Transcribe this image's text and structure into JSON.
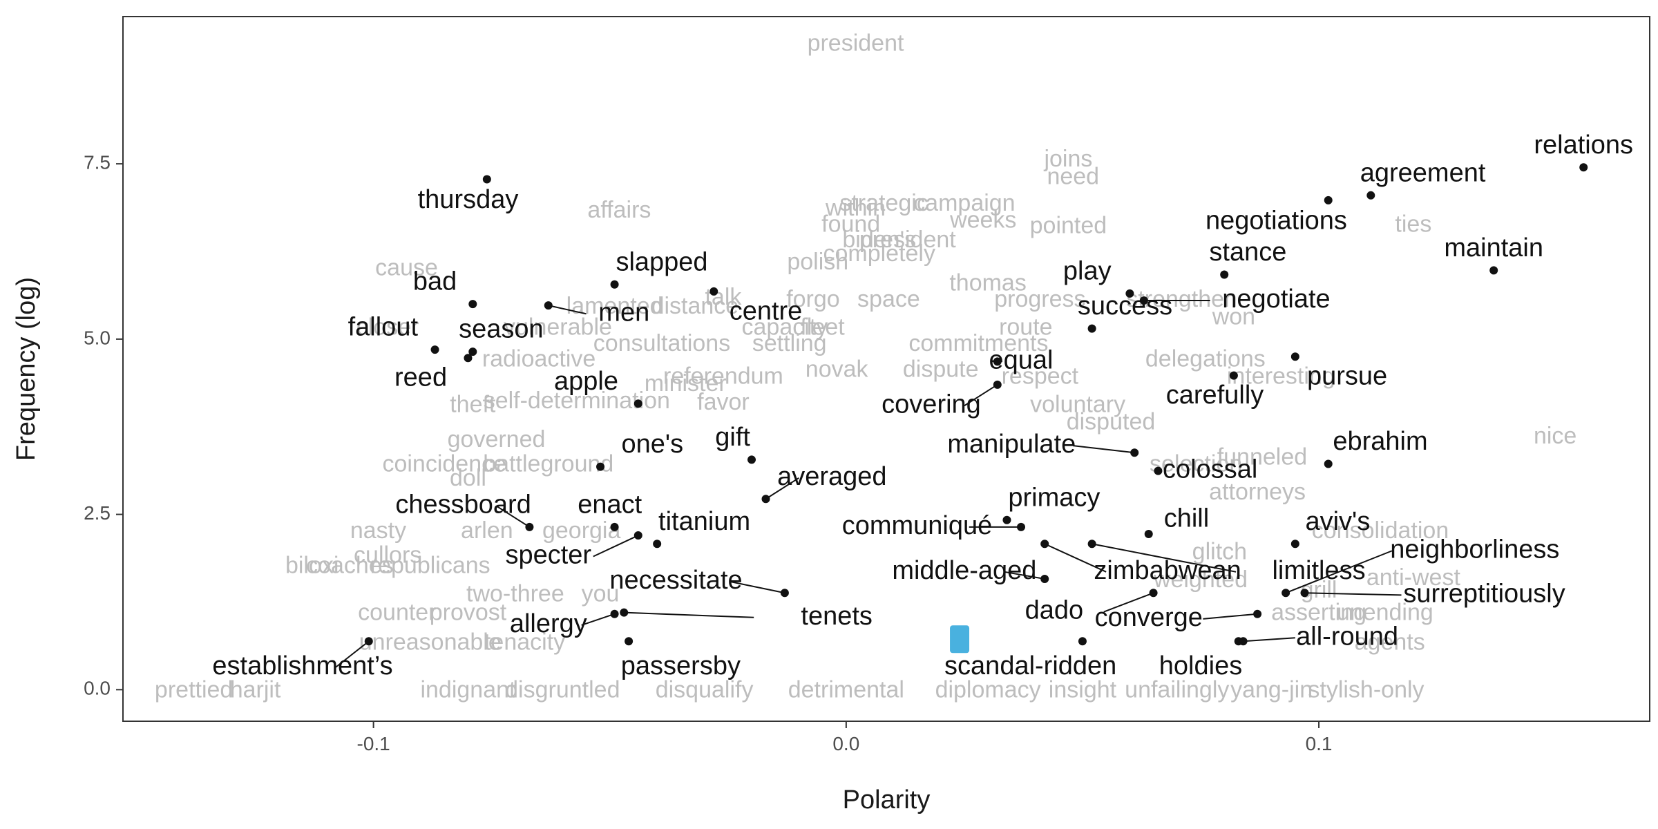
{
  "chart_data": {
    "type": "scatter",
    "title": "",
    "xlabel": "Polarity",
    "ylabel": "Frequency (log)",
    "xlim": [
      -0.153,
      0.17
    ],
    "ylim": [
      -0.45,
      9.6
    ],
    "x_ticks": [
      {
        "value": -0.1,
        "label": "-0.1"
      },
      {
        "value": 0.0,
        "label": "0.0"
      },
      {
        "value": 0.1,
        "label": "0.1"
      }
    ],
    "y_ticks": [
      {
        "value": 0.0,
        "label": "0.0"
      },
      {
        "value": 2.5,
        "label": "2.5"
      },
      {
        "value": 5.0,
        "label": "5.0"
      },
      {
        "value": 7.5,
        "label": "7.5"
      }
    ],
    "grid": false,
    "point_color": "#111111",
    "label_color": "#111111",
    "background_word_color": "#bdbdbd",
    "highlight_color": "#29a3d9",
    "labeled_points": [
      {
        "word": "relations",
        "x": 0.156,
        "y": 7.45,
        "label_x": 0.156,
        "label_y": 7.75
      },
      {
        "word": "agreement",
        "x": 0.111,
        "y": 7.05,
        "label_x": 0.122,
        "label_y": 7.35
      },
      {
        "word": "negotiations",
        "x": 0.102,
        "y": 6.98,
        "label_x": 0.091,
        "label_y": 6.67
      },
      {
        "word": "maintain",
        "x": 0.137,
        "y": 5.98,
        "label_x": 0.137,
        "label_y": 6.28
      },
      {
        "word": "stance",
        "x": 0.08,
        "y": 5.92,
        "label_x": 0.085,
        "label_y": 6.22
      },
      {
        "word": "thursday",
        "x": -0.076,
        "y": 7.28,
        "label_x": -0.08,
        "label_y": 6.97
      },
      {
        "word": "slapped",
        "x": -0.049,
        "y": 5.78,
        "label_x": -0.039,
        "label_y": 6.08
      },
      {
        "word": "bad",
        "x": -0.079,
        "y": 5.5,
        "label_x": -0.087,
        "label_y": 5.8
      },
      {
        "word": "men",
        "x": -0.063,
        "y": 5.48,
        "label_x": -0.047,
        "label_y": 5.36
      },
      {
        "word": "centre",
        "x": -0.028,
        "y": 5.68,
        "label_x": -0.017,
        "label_y": 5.38
      },
      {
        "word": "play",
        "x": 0.06,
        "y": 5.65,
        "label_x": 0.051,
        "label_y": 5.95
      },
      {
        "word": "negotiate",
        "x": 0.063,
        "y": 5.55,
        "label_x": 0.091,
        "label_y": 5.55
      },
      {
        "word": "success",
        "x": 0.052,
        "y": 5.15,
        "label_x": 0.059,
        "label_y": 5.45
      },
      {
        "word": "fallout",
        "x": -0.087,
        "y": 4.85,
        "label_x": -0.098,
        "label_y": 5.15
      },
      {
        "word": "season",
        "x": -0.079,
        "y": 4.82,
        "label_x": -0.073,
        "label_y": 5.12
      },
      {
        "word": "reed",
        "x": -0.08,
        "y": 4.73,
        "label_x": -0.09,
        "label_y": 4.43
      },
      {
        "word": "equal",
        "x": 0.032,
        "y": 4.68,
        "label_x": 0.037,
        "label_y": 4.68
      },
      {
        "word": "pursue",
        "x": 0.095,
        "y": 4.75,
        "label_x": 0.106,
        "label_y": 4.45
      },
      {
        "word": "apple",
        "x": -0.044,
        "y": 4.08,
        "label_x": -0.055,
        "label_y": 4.38
      },
      {
        "word": "covering",
        "x": 0.032,
        "y": 4.35,
        "label_x": 0.018,
        "label_y": 4.05
      },
      {
        "word": "carefully",
        "x": 0.082,
        "y": 4.48,
        "label_x": 0.078,
        "label_y": 4.18
      },
      {
        "word": "one's",
        "x": -0.052,
        "y": 3.18,
        "label_x": -0.041,
        "label_y": 3.48
      },
      {
        "word": "gift",
        "x": -0.02,
        "y": 3.28,
        "label_x": -0.024,
        "label_y": 3.58
      },
      {
        "word": "manipulate",
        "x": 0.061,
        "y": 3.38,
        "label_x": 0.035,
        "label_y": 3.48
      },
      {
        "word": "ebrahim",
        "x": 0.102,
        "y": 3.22,
        "label_x": 0.113,
        "label_y": 3.52
      },
      {
        "word": "colossal",
        "x": 0.066,
        "y": 3.12,
        "label_x": 0.077,
        "label_y": 3.12
      },
      {
        "word": "averaged",
        "x": -0.017,
        "y": 2.72,
        "label_x": -0.003,
        "label_y": 3.02
      },
      {
        "word": "primacy",
        "x": 0.034,
        "y": 2.42,
        "label_x": 0.044,
        "label_y": 2.72
      },
      {
        "word": "chessboard",
        "x": -0.067,
        "y": 2.32,
        "label_x": -0.081,
        "label_y": 2.62
      },
      {
        "word": "enact",
        "x": -0.049,
        "y": 2.32,
        "label_x": -0.05,
        "label_y": 2.62
      },
      {
        "word": "titanium",
        "x": -0.04,
        "y": 2.08,
        "label_x": -0.03,
        "label_y": 2.38
      },
      {
        "word": "specter",
        "x": -0.044,
        "y": 2.2,
        "label_x": -0.063,
        "label_y": 1.9
      },
      {
        "word": "communiqué",
        "x": 0.037,
        "y": 2.32,
        "label_x": 0.015,
        "label_y": 2.32
      },
      {
        "word": "chill",
        "x": 0.064,
        "y": 2.22,
        "label_x": 0.072,
        "label_y": 2.42
      },
      {
        "word": "aviv's",
        "x": 0.095,
        "y": 2.08,
        "label_x": 0.104,
        "label_y": 2.38
      },
      {
        "word": "neighborliness",
        "x": 0.093,
        "y": 1.38,
        "label_x": 0.133,
        "label_y": 1.98
      },
      {
        "word": "limitless",
        "x": 0.052,
        "y": 2.08,
        "label_x": 0.1,
        "label_y": 1.68
      },
      {
        "word": "necessitate",
        "x": -0.013,
        "y": 1.38,
        "label_x": -0.036,
        "label_y": 1.54
      },
      {
        "word": "middle-aged",
        "x": 0.042,
        "y": 1.58,
        "label_x": 0.025,
        "label_y": 1.68
      },
      {
        "word": "zimbabwean",
        "x": 0.042,
        "y": 2.08,
        "label_x": 0.068,
        "label_y": 1.68
      },
      {
        "word": "surreptitiously",
        "x": 0.097,
        "y": 1.38,
        "label_x": 0.135,
        "label_y": 1.35
      },
      {
        "word": "allergy",
        "x": -0.049,
        "y": 1.08,
        "label_x": -0.063,
        "label_y": 0.92
      },
      {
        "word": "tenets",
        "x": -0.047,
        "y": 1.1,
        "label_x": -0.002,
        "label_y": 1.03
      },
      {
        "word": "dado",
        "x": 0.065,
        "y": 1.38,
        "label_x": 0.044,
        "label_y": 1.11
      },
      {
        "word": "converge",
        "x": 0.087,
        "y": 1.08,
        "label_x": 0.064,
        "label_y": 1.01
      },
      {
        "word": "all-round",
        "x": 0.084,
        "y": 0.69,
        "label_x": 0.106,
        "label_y": 0.74
      },
      {
        "word": "establishment’s",
        "x": -0.101,
        "y": 0.69,
        "label_x": -0.115,
        "label_y": 0.32
      },
      {
        "word": "passersby",
        "x": -0.046,
        "y": 0.69,
        "label_x": -0.035,
        "label_y": 0.32
      },
      {
        "word": "scandal-ridden",
        "x": 0.05,
        "y": 0.69,
        "label_x": 0.039,
        "label_y": 0.32
      },
      {
        "word": "holdies",
        "x": 0.083,
        "y": 0.69,
        "label_x": 0.075,
        "label_y": 0.32
      }
    ],
    "background_labels": [
      {
        "word": "president",
        "x": 0.002,
        "y": 9.2
      },
      {
        "word": "joins",
        "x": 0.047,
        "y": 7.55
      },
      {
        "word": "need",
        "x": 0.048,
        "y": 7.3
      },
      {
        "word": "ties",
        "x": 0.12,
        "y": 6.62
      },
      {
        "word": "affairs",
        "x": -0.048,
        "y": 6.82
      },
      {
        "word": "strategic",
        "x": 0.008,
        "y": 6.92
      },
      {
        "word": "campaign",
        "x": 0.025,
        "y": 6.92
      },
      {
        "word": "within",
        "x": 0.002,
        "y": 6.85
      },
      {
        "word": "weeks",
        "x": 0.029,
        "y": 6.68
      },
      {
        "word": "pointed",
        "x": 0.047,
        "y": 6.6
      },
      {
        "word": "found",
        "x": 0.001,
        "y": 6.62
      },
      {
        "word": "biden's",
        "x": 0.007,
        "y": 6.4
      },
      {
        "word": "president",
        "x": 0.013,
        "y": 6.4
      },
      {
        "word": "polish",
        "x": -0.006,
        "y": 6.08
      },
      {
        "word": "completely",
        "x": 0.007,
        "y": 6.2
      },
      {
        "word": "thomas",
        "x": 0.03,
        "y": 5.78
      },
      {
        "word": "cause",
        "x": -0.093,
        "y": 6.0
      },
      {
        "word": "strengthen",
        "x": 0.071,
        "y": 5.55
      },
      {
        "word": "won",
        "x": 0.082,
        "y": 5.3
      },
      {
        "word": "talk",
        "x": -0.026,
        "y": 5.58
      },
      {
        "word": "forgo",
        "x": -0.007,
        "y": 5.55
      },
      {
        "word": "space",
        "x": 0.009,
        "y": 5.55
      },
      {
        "word": "progress",
        "x": 0.041,
        "y": 5.55
      },
      {
        "word": "lamented",
        "x": -0.049,
        "y": 5.45
      },
      {
        "word": "distance",
        "x": -0.032,
        "y": 5.45
      },
      {
        "word": "closer",
        "x": -0.097,
        "y": 5.15
      },
      {
        "word": "vulnerable",
        "x": -0.061,
        "y": 5.15
      },
      {
        "word": "capacity",
        "x": -0.013,
        "y": 5.15
      },
      {
        "word": "fleet",
        "x": -0.005,
        "y": 5.15
      },
      {
        "word": "route",
        "x": 0.038,
        "y": 5.15
      },
      {
        "word": "consultations",
        "x": -0.039,
        "y": 4.92
      },
      {
        "word": "settling",
        "x": -0.012,
        "y": 4.92
      },
      {
        "word": "commitments",
        "x": 0.028,
        "y": 4.92
      },
      {
        "word": "radioactive",
        "x": -0.065,
        "y": 4.7
      },
      {
        "word": "delegations",
        "x": 0.076,
        "y": 4.7
      },
      {
        "word": "referendum",
        "x": -0.026,
        "y": 4.45
      },
      {
        "word": "novak",
        "x": -0.002,
        "y": 4.55
      },
      {
        "word": "dispute",
        "x": 0.02,
        "y": 4.55
      },
      {
        "word": "respect",
        "x": 0.041,
        "y": 4.45
      },
      {
        "word": "interesting",
        "x": 0.092,
        "y": 4.45
      },
      {
        "word": "minister",
        "x": -0.034,
        "y": 4.35
      },
      {
        "word": "favor",
        "x": -0.026,
        "y": 4.08
      },
      {
        "word": "self-determination",
        "x": -0.057,
        "y": 4.1
      },
      {
        "word": "theft",
        "x": -0.079,
        "y": 4.05
      },
      {
        "word": "voluntary",
        "x": 0.049,
        "y": 4.05
      },
      {
        "word": "disputed",
        "x": 0.056,
        "y": 3.8
      },
      {
        "word": "governed",
        "x": -0.074,
        "y": 3.55
      },
      {
        "word": "coincidence",
        "x": -0.085,
        "y": 3.2
      },
      {
        "word": "battleground",
        "x": -0.063,
        "y": 3.2
      },
      {
        "word": "selection",
        "x": 0.074,
        "y": 3.2
      },
      {
        "word": "funneled",
        "x": 0.088,
        "y": 3.3
      },
      {
        "word": "nice",
        "x": 0.15,
        "y": 3.6
      },
      {
        "word": "doll",
        "x": -0.08,
        "y": 3.0
      },
      {
        "word": "attorneys",
        "x": 0.087,
        "y": 2.8
      },
      {
        "word": "nasty",
        "x": -0.099,
        "y": 2.25
      },
      {
        "word": "arlen",
        "x": -0.076,
        "y": 2.25
      },
      {
        "word": "georgia",
        "x": -0.056,
        "y": 2.25
      },
      {
        "word": "consolidation",
        "x": 0.113,
        "y": 2.25
      },
      {
        "word": "cullors",
        "x": -0.097,
        "y": 1.9
      },
      {
        "word": "biloxi",
        "x": -0.113,
        "y": 1.75
      },
      {
        "word": "coaches",
        "x": -0.105,
        "y": 1.75
      },
      {
        "word": "republicans",
        "x": -0.088,
        "y": 1.75
      },
      {
        "word": "glitch",
        "x": 0.079,
        "y": 1.95
      },
      {
        "word": "anti-west",
        "x": 0.12,
        "y": 1.58
      },
      {
        "word": "two-three",
        "x": -0.07,
        "y": 1.35
      },
      {
        "word": "you",
        "x": -0.052,
        "y": 1.35
      },
      {
        "word": "weighted",
        "x": 0.075,
        "y": 1.55
      },
      {
        "word": "grill",
        "x": 0.1,
        "y": 1.4
      },
      {
        "word": "counter",
        "x": -0.095,
        "y": 1.08
      },
      {
        "word": "provost",
        "x": -0.08,
        "y": 1.08
      },
      {
        "word": "unreasonable",
        "x": -0.088,
        "y": 0.66
      },
      {
        "word": "tenacity",
        "x": -0.068,
        "y": 0.66
      },
      {
        "word": "asserting",
        "x": 0.1,
        "y": 1.08
      },
      {
        "word": "unending",
        "x": 0.114,
        "y": 1.08
      },
      {
        "word": "agents",
        "x": 0.115,
        "y": 0.66
      },
      {
        "word": "prettied",
        "x": -0.138,
        "y": -0.02
      },
      {
        "word": "harjit",
        "x": -0.125,
        "y": -0.02
      },
      {
        "word": "indignant",
        "x": -0.08,
        "y": -0.02
      },
      {
        "word": "disgruntled",
        "x": -0.06,
        "y": -0.02
      },
      {
        "word": "disqualify",
        "x": -0.03,
        "y": -0.02
      },
      {
        "word": "detrimental",
        "x": 0.0,
        "y": -0.02
      },
      {
        "word": "diplomacy",
        "x": 0.03,
        "y": -0.02
      },
      {
        "word": "insight",
        "x": 0.05,
        "y": -0.02
      },
      {
        "word": "unfailingly",
        "x": 0.07,
        "y": -0.02
      },
      {
        "word": "yang-jin",
        "x": 0.09,
        "y": -0.02
      },
      {
        "word": "stylish-only",
        "x": 0.11,
        "y": -0.02
      }
    ],
    "highlighted_marks": [
      {
        "x": 0.024,
        "y": 0.72
      }
    ]
  }
}
